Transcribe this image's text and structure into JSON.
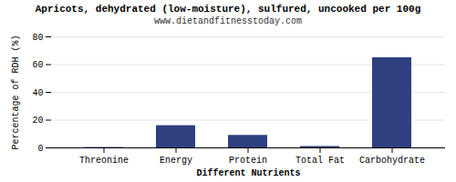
{
  "chart_data": {
    "type": "bar",
    "title": "Apricots, dehydrated (low-moisture), sulfured, uncooked per 100g",
    "subtitle": "www.dietandfitnesstoday.com",
    "xlabel": "Different Nutrients",
    "ylabel": "Percentage of RDH (%)",
    "categories": [
      "Threonine",
      "Energy",
      "Protein",
      "Total Fat",
      "Carbohydrate"
    ],
    "values": [
      0.3,
      16,
      9,
      1,
      65
    ],
    "color": "#2e4080",
    "ylim": [
      0,
      80
    ],
    "yticks": [
      0,
      20,
      40,
      60,
      80
    ],
    "grid": true
  }
}
